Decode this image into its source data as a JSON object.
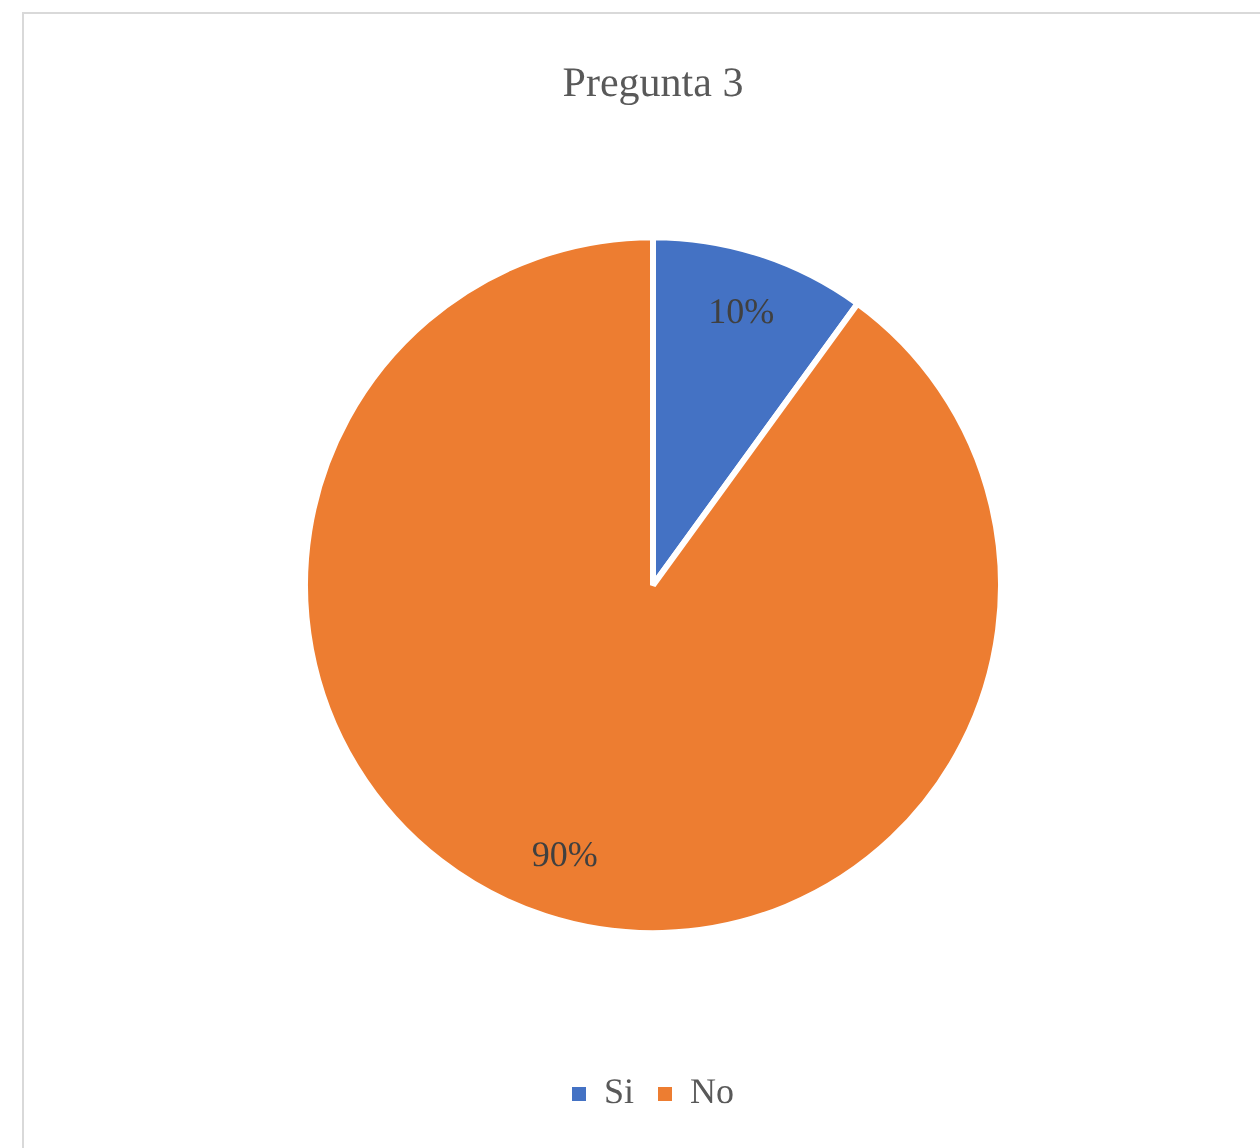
{
  "chart_data": {
    "type": "pie",
    "title": "Pregunta 3",
    "categories": [
      "Si",
      "No"
    ],
    "values": [
      10,
      90
    ],
    "colors": [
      "#4472c4",
      "#ed7d31"
    ],
    "value_labels": [
      "10%",
      "90%"
    ],
    "legend": "bottom"
  }
}
